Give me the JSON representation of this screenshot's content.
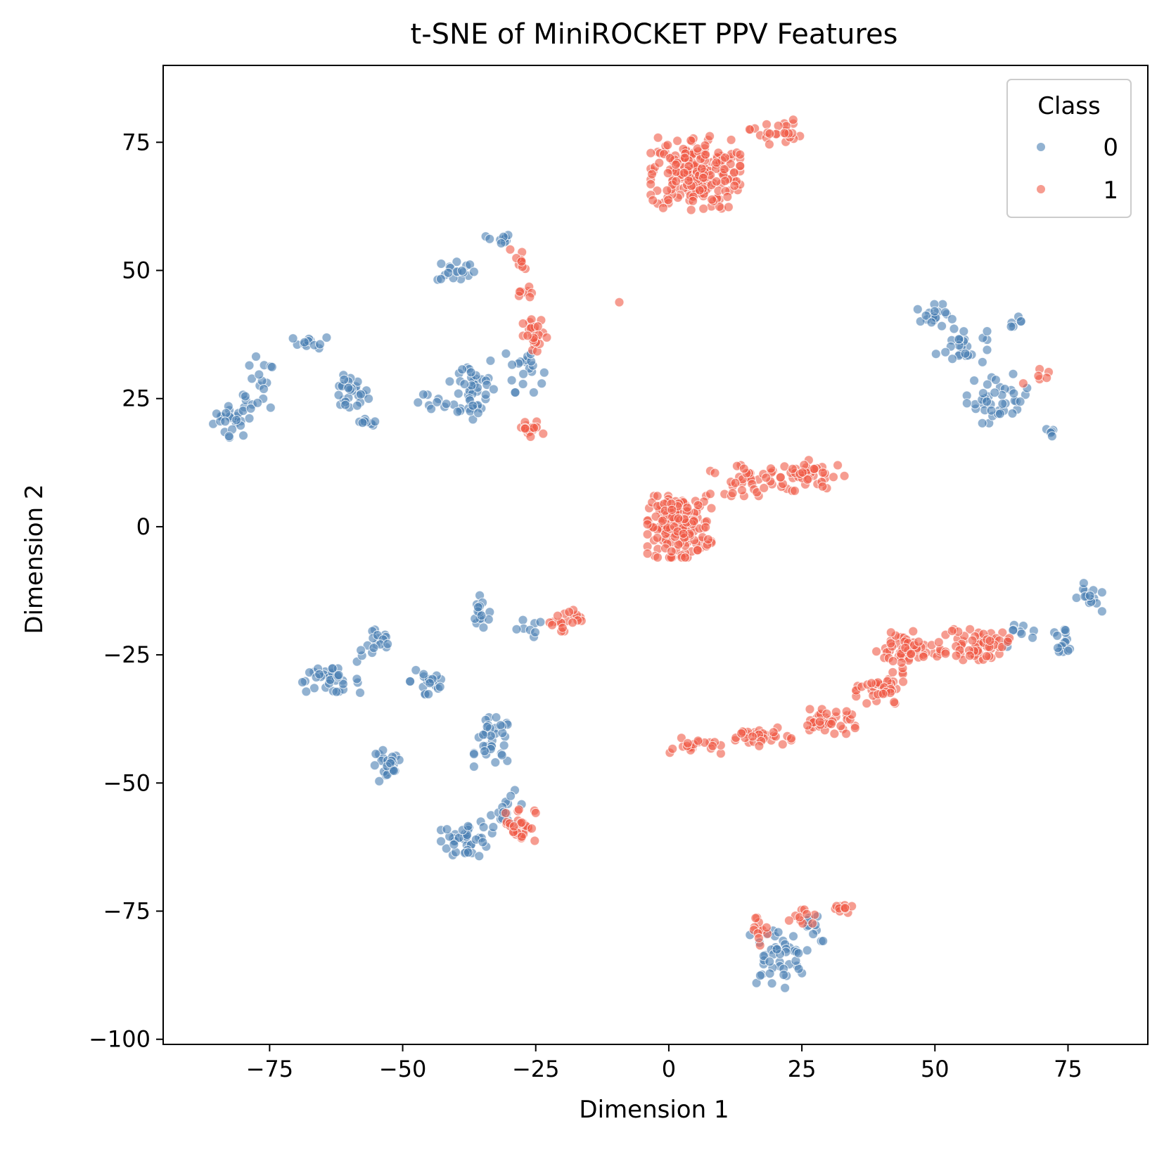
{
  "chart_data": {
    "type": "scatter",
    "title": "t-SNE of MiniROCKET PPV Features",
    "xlabel": "Dimension 1",
    "ylabel": "Dimension 2",
    "xlim": [
      -95,
      90
    ],
    "ylim": [
      -101,
      90
    ],
    "xticks": [
      -75,
      -50,
      -25,
      0,
      25,
      50,
      75
    ],
    "xtick_labels": [
      "−75",
      "−50",
      "−25",
      "0",
      "25",
      "50",
      "75"
    ],
    "yticks": [
      -100,
      -75,
      -50,
      -25,
      0,
      25,
      50,
      75
    ],
    "ytick_labels": [
      "−100",
      "−75",
      "−50",
      "−25",
      "0",
      "25",
      "50",
      "75"
    ],
    "grid": false,
    "legend": {
      "title": "Class",
      "placement": "top-right"
    },
    "series": [
      {
        "name": "0",
        "color": "#4a7eb2",
        "clusters": [
          {
            "center": [
              -82,
              21
            ],
            "spread": [
              3,
              3
            ],
            "n": 25
          },
          {
            "center": [
              -77,
              26
            ],
            "spread": [
              2.5,
              6
            ],
            "n": 20
          },
          {
            "center": [
              -67,
              36
            ],
            "spread": [
              3,
              1
            ],
            "n": 12
          },
          {
            "center": [
              -60,
              26
            ],
            "spread": [
              3,
              3
            ],
            "n": 28
          },
          {
            "center": [
              -57,
              20
            ],
            "spread": [
              2,
              1
            ],
            "n": 8
          },
          {
            "center": [
              -44,
              24
            ],
            "spread": [
              3,
              1.5
            ],
            "n": 8
          },
          {
            "center": [
              -40,
              50
            ],
            "spread": [
              3,
              2
            ],
            "n": 18
          },
          {
            "center": [
              -32,
              56
            ],
            "spread": [
              2,
              1
            ],
            "n": 10
          },
          {
            "center": [
              -37,
              27
            ],
            "spread": [
              4,
              6
            ],
            "n": 45
          },
          {
            "center": [
              -27,
              31
            ],
            "spread": [
              3,
              4
            ],
            "n": 20
          },
          {
            "center": [
              50,
              41
            ],
            "spread": [
              3,
              2
            ],
            "n": 20
          },
          {
            "center": [
              55,
              35
            ],
            "spread": [
              4,
              3
            ],
            "n": 25
          },
          {
            "center": [
              62,
              25
            ],
            "spread": [
              5,
              4
            ],
            "n": 40
          },
          {
            "center": [
              72,
              18.5
            ],
            "spread": [
              1,
              0.7
            ],
            "n": 5
          },
          {
            "center": [
              65,
              40
            ],
            "spread": [
              1.2,
              0.8
            ],
            "n": 6
          },
          {
            "center": [
              -64,
              -30
            ],
            "spread": [
              5,
              2
            ],
            "n": 35
          },
          {
            "center": [
              -55,
              -23
            ],
            "spread": [
              3,
              3
            ],
            "n": 18
          },
          {
            "center": [
              -45,
              -30
            ],
            "spread": [
              3,
              4
            ],
            "n": 20
          },
          {
            "center": [
              -35,
              -17
            ],
            "spread": [
              2,
              3
            ],
            "n": 15
          },
          {
            "center": [
              -27,
              -20
            ],
            "spread": [
              3,
              1.5
            ],
            "n": 8
          },
          {
            "center": [
              -53,
              -47
            ],
            "spread": [
              2.5,
              3
            ],
            "n": 25
          },
          {
            "center": [
              -33,
              -42
            ],
            "spread": [
              3,
              4
            ],
            "n": 35
          },
          {
            "center": [
              -38,
              -61
            ],
            "spread": [
              4,
              3
            ],
            "n": 40
          },
          {
            "center": [
              -30,
              -55
            ],
            "spread": [
              3,
              3
            ],
            "n": 15
          },
          {
            "center": [
              66,
              -21
            ],
            "spread": [
              3,
              2
            ],
            "n": 10
          },
          {
            "center": [
              74,
              -22
            ],
            "spread": [
              2,
              2
            ],
            "n": 15
          },
          {
            "center": [
              79,
              -14
            ],
            "spread": [
              2,
              2.5
            ],
            "n": 15
          },
          {
            "center": [
              20,
              -84
            ],
            "spread": [
              5,
              5
            ],
            "n": 45
          },
          {
            "center": [
              27,
              -80
            ],
            "spread": [
              3,
              4
            ],
            "n": 10
          }
        ]
      },
      {
        "name": "1",
        "color": "#f05a46",
        "clusters": [
          {
            "center": [
              5,
              69
            ],
            "spread": [
              7,
              6
            ],
            "n": 220
          },
          {
            "center": [
              20,
              77
            ],
            "spread": [
              4,
              2
            ],
            "n": 25
          },
          {
            "center": [
              -28,
              52
            ],
            "spread": [
              1.5,
              2.5
            ],
            "n": 10
          },
          {
            "center": [
              -27,
              45
            ],
            "spread": [
              1.5,
              1.5
            ],
            "n": 8
          },
          {
            "center": [
              -25,
              37
            ],
            "spread": [
              2,
              3
            ],
            "n": 25
          },
          {
            "center": [
              -26,
              19
            ],
            "spread": [
              2,
              1.5
            ],
            "n": 15
          },
          {
            "center": [
              -9.5,
              44
            ],
            "spread": [
              0.3,
              0.3
            ],
            "n": 1
          },
          {
            "center": [
              2,
              0
            ],
            "spread": [
              5,
              5
            ],
            "n": 180
          },
          {
            "center": [
              15,
              9
            ],
            "spread": [
              6,
              2.5
            ],
            "n": 40
          },
          {
            "center": [
              27,
              10
            ],
            "spread": [
              5,
              2.5
            ],
            "n": 40
          },
          {
            "center": [
              -20,
              -18
            ],
            "spread": [
              3,
              2
            ],
            "n": 20
          },
          {
            "center": [
              5,
              -43
            ],
            "spread": [
              4,
              1.5
            ],
            "n": 20
          },
          {
            "center": [
              17,
              -41
            ],
            "spread": [
              5,
              1.5
            ],
            "n": 30
          },
          {
            "center": [
              30,
              -38
            ],
            "spread": [
              5,
              2
            ],
            "n": 40
          },
          {
            "center": [
              40,
              -32
            ],
            "spread": [
              4,
              3
            ],
            "n": 40
          },
          {
            "center": [
              45,
              -24
            ],
            "spread": [
              5,
              3
            ],
            "n": 60
          },
          {
            "center": [
              58,
              -23
            ],
            "spread": [
              5,
              2.5
            ],
            "n": 60
          },
          {
            "center": [
              -28,
              -58
            ],
            "spread": [
              2.5,
              3
            ],
            "n": 30
          },
          {
            "center": [
              17,
              -79
            ],
            "spread": [
              2,
              3
            ],
            "n": 12
          },
          {
            "center": [
              25,
              -75
            ],
            "spread": [
              2,
              2
            ],
            "n": 10
          },
          {
            "center": [
              32,
              -75
            ],
            "spread": [
              2,
              1.5
            ],
            "n": 10
          },
          {
            "center": [
              69,
              28
            ],
            "spread": [
              2,
              3
            ],
            "n": 6
          }
        ]
      }
    ]
  }
}
